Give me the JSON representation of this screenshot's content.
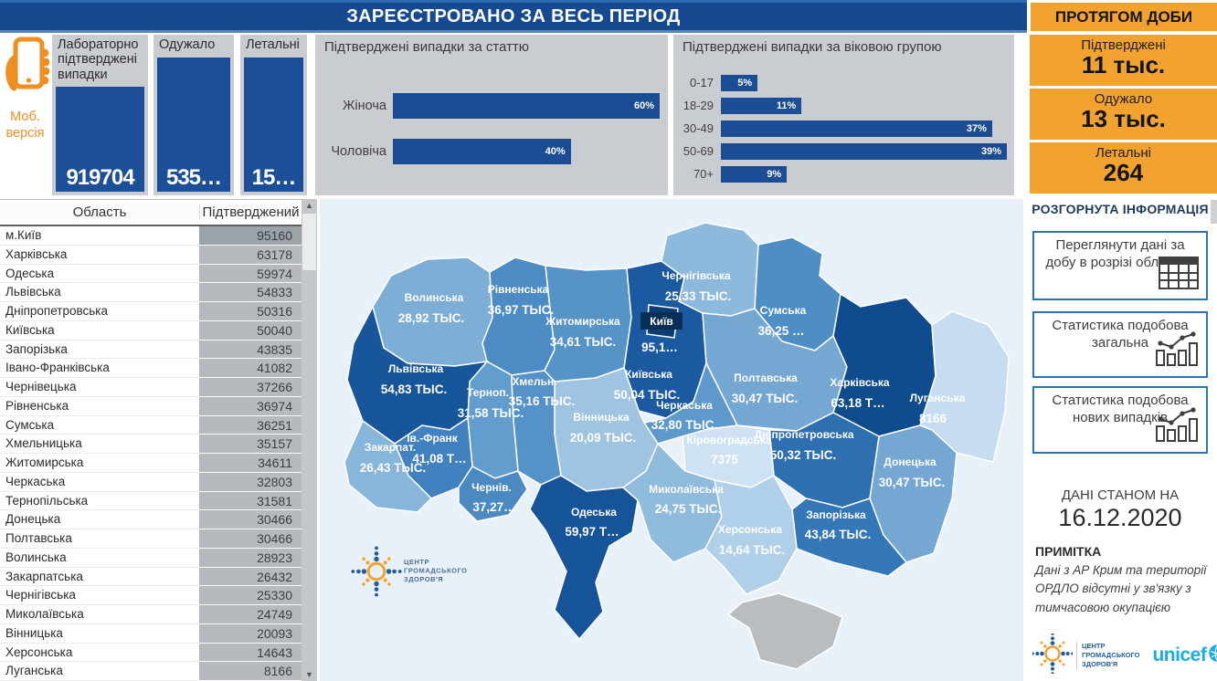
{
  "header": {
    "title": "ЗАРЕЄСТРОВАНО ЗА ВЕСЬ ПЕРІОД"
  },
  "mobile": {
    "line1": "Моб.",
    "line2": "версія"
  },
  "kpi_cards": [
    {
      "label": "Лабораторно підтверджені випадки",
      "value": "919704"
    },
    {
      "label": "Одужало",
      "value": "535…"
    },
    {
      "label": "Летальні",
      "value": "15…"
    }
  ],
  "gender_chart": {
    "title": "Підтверджені випадки за статтю",
    "categories": [
      "Жіноча",
      "Чоловіча"
    ],
    "values": [
      60,
      40
    ],
    "labels": [
      "60%",
      "40%"
    ]
  },
  "age_chart": {
    "title": "Підтверджені випадки за віковою групою",
    "categories": [
      "0-17",
      "18-29",
      "30-49",
      "50-69",
      "70+"
    ],
    "values": [
      5,
      11,
      37,
      39,
      9
    ],
    "labels": [
      "5%",
      "11%",
      "37%",
      "39%",
      "9%"
    ]
  },
  "daily_panel": {
    "title": "ПРОТЯГОМ ДОБИ",
    "cards": [
      {
        "label": "Підтверджені",
        "value": "11 тыс."
      },
      {
        "label": "Одужало",
        "value": "13 тыс."
      },
      {
        "label": "Летальні",
        "value": "264"
      }
    ]
  },
  "table": {
    "headers": [
      "Область",
      "Підтверджений"
    ],
    "rows": [
      [
        "м.Київ",
        "95160"
      ],
      [
        "Харківська",
        "63178"
      ],
      [
        "Одеська",
        "59974"
      ],
      [
        "Львівська",
        "54833"
      ],
      [
        "Дніпропетровська",
        "50316"
      ],
      [
        "Київська",
        "50040"
      ],
      [
        "Запорізька",
        "43835"
      ],
      [
        "Івано-Франківська",
        "41082"
      ],
      [
        "Чернівецька",
        "37266"
      ],
      [
        "Рівненська",
        "36974"
      ],
      [
        "Сумська",
        "36251"
      ],
      [
        "Хмельницька",
        "35157"
      ],
      [
        "Житомирська",
        "34611"
      ],
      [
        "Черкаська",
        "32803"
      ],
      [
        "Тернопільська",
        "31581"
      ],
      [
        "Донецька",
        "30466"
      ],
      [
        "Полтавська",
        "30466"
      ],
      [
        "Волинська",
        "28923"
      ],
      [
        "Закарпатська",
        "26432"
      ],
      [
        "Чернігівська",
        "25330"
      ],
      [
        "Миколаївська",
        "24749"
      ],
      [
        "Вінницька",
        "20093"
      ],
      [
        "Херсонська",
        "14643"
      ],
      [
        "Луганська",
        "8166"
      ]
    ]
  },
  "map": {
    "crimea_color": "#b9bdc0",
    "attribution": [
      "ЦЕНТР",
      "ГРОМАДСЬКОГО",
      "ЗДОРОВ'Я"
    ],
    "regions": [
      {
        "id": "volyn",
        "name": "Волинська",
        "value": "28,92 ТЫС.",
        "color": "#7daed6"
      },
      {
        "id": "rivne",
        "name": "Рівненська",
        "value": "36,97 ТЫС.",
        "color": "#4d8bc4"
      },
      {
        "id": "zhytomyr",
        "name": "Житомирська",
        "value": "34,61 ТЫС.",
        "color": "#5694c8"
      },
      {
        "id": "kyiv_obl",
        "name": "Київська",
        "value": "50,04 ТЫС.",
        "color": "#1b5aa1"
      },
      {
        "id": "chernihiv",
        "name": "Чернігівська",
        "value": "25,33 ТЫС.",
        "color": "#8dbadc"
      },
      {
        "id": "sumy",
        "name": "Сумська",
        "value": "36,25 …",
        "color": "#4f8dc5"
      },
      {
        "id": "poltava",
        "name": "Полтавська",
        "value": "30,47 ТЫС.",
        "color": "#74a8d3"
      },
      {
        "id": "kharkiv",
        "name": "Харківська",
        "value": "63,18 Т…",
        "color": "#0f4c8e"
      },
      {
        "id": "luhansk",
        "name": "Луганська",
        "value": "8166",
        "color": "#c6dcf0"
      },
      {
        "id": "donetsk",
        "name": "Донецька",
        "value": "30,47 ТЫС.",
        "color": "#74a8d3"
      },
      {
        "id": "dnipro",
        "name": "Дніпропетровська",
        "value": "50,32 ТЫС.",
        "color": "#2e6fb0"
      },
      {
        "id": "zaporizhzhia",
        "name": "Запорізька",
        "value": "43,84 ТЫС.",
        "color": "#3477b7"
      },
      {
        "id": "kirovohrad",
        "name": "Кіровоградська",
        "value": "7375",
        "color": "#cfe2f3"
      },
      {
        "id": "cherkasy",
        "name": "Черкаська",
        "value": "32,80 ТЫС.",
        "color": "#5d99cb"
      },
      {
        "id": "vinnytsia",
        "name": "Вінницька",
        "value": "20,09 ТЫС.",
        "color": "#9fc4e2"
      },
      {
        "id": "khmelnytskyi",
        "name": "Хмельн.",
        "value": "35,16 ТЫС.",
        "color": "#5492c7"
      },
      {
        "id": "ternopil",
        "name": "Терноп.",
        "value": "31,58 ТЫС.",
        "color": "#639dcd"
      },
      {
        "id": "lviv",
        "name": "Львівська",
        "value": "54,83 ТЫС.",
        "color": "#17569b"
      },
      {
        "id": "ivano",
        "name": "Ів.-Франк",
        "value": "41,08 Т…",
        "color": "#4181bf"
      },
      {
        "id": "zakarpattia",
        "name": "Закарпат.",
        "value": "26,43 ТЫС.",
        "color": "#88b6da"
      },
      {
        "id": "chernivtsi",
        "name": "Чернів.",
        "value": "37,27…",
        "color": "#4b89c3"
      },
      {
        "id": "odesa",
        "name": "Одеська",
        "value": "59,97 Т…",
        "color": "#155499"
      },
      {
        "id": "mykolaiv",
        "name": "Миколаївська",
        "value": "24,75 ТЫС.",
        "color": "#8fbbdd"
      },
      {
        "id": "kherson",
        "name": "Херсонська",
        "value": "14,64 ТЫС.",
        "color": "#b0cfe8"
      },
      {
        "id": "kyiv_city",
        "name": "Київ",
        "value": "95,1…",
        "color": "#0b3d74",
        "boxed": true
      }
    ]
  },
  "sidebar": {
    "heading": "РОЗГОРНУТА ІНФОРМАЦІЯ",
    "buttons": [
      {
        "label": "Переглянути дані за добу в розрізі областей",
        "icon": "table-icon"
      },
      {
        "label": "Статистика подобова загальна",
        "icon": "chart-icon"
      },
      {
        "label": "Статистика подобова нових випадків",
        "icon": "chart-icon"
      }
    ],
    "as_of_label": "ДАНІ СТАНОМ НА",
    "as_of_date": "16.12.2020",
    "note_title": "ПРИМІТКА",
    "note_text": "Дані з АР Крим та території ОРДЛО відсутні у зв'язку з тимчасовою окупацією"
  },
  "logos": {
    "chz_lines": [
      "ЦЕНТР",
      "ГРОМАДСЬКОГО",
      "ЗДОРОВ'Я"
    ],
    "unicef": "unicef"
  },
  "colors": {
    "primary_blue": "#17498f",
    "bar_blue": "#1a4d94",
    "orange": "#f2a22f",
    "panel_gray": "#c9ccd1",
    "map_bg": "#e9f1f8"
  },
  "chart_data": [
    {
      "type": "bar",
      "title": "Підтверджені випадки за статтю",
      "categories": [
        "Жіноча",
        "Чоловіча"
      ],
      "values": [
        60,
        40
      ],
      "unit": "%",
      "orientation": "horizontal",
      "xlim": [
        0,
        60
      ]
    },
    {
      "type": "bar",
      "title": "Підтверджені випадки за віковою групою",
      "categories": [
        "0-17",
        "18-29",
        "30-49",
        "50-69",
        "70+"
      ],
      "values": [
        5,
        11,
        37,
        39,
        9
      ],
      "unit": "%",
      "orientation": "horizontal",
      "xlim": [
        0,
        39
      ]
    }
  ]
}
